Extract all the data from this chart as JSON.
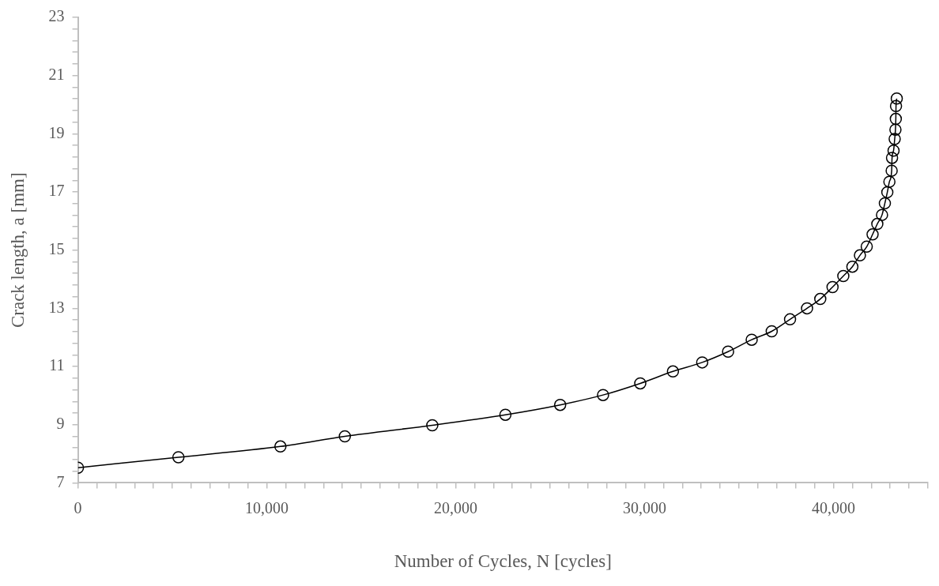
{
  "chart_data": {
    "type": "line",
    "xlabel": "Number of Cycles, N [cycles]",
    "ylabel": "Crack length, a [mm]",
    "x": [
      0,
      5320,
      10720,
      14130,
      18760,
      22630,
      25530,
      27800,
      29770,
      31500,
      33050,
      34420,
      35670,
      36730,
      37700,
      38600,
      39300,
      39950,
      40520,
      41000,
      41400,
      41760,
      42070,
      42320,
      42570,
      42720,
      42850,
      42960,
      43080,
      43100,
      43180,
      43240,
      43280,
      43300,
      43310,
      43350
    ],
    "series": [
      {
        "color": "#000000",
        "values": [
          7.52,
          7.88,
          8.25,
          8.6,
          8.98,
          9.34,
          9.68,
          10.02,
          10.42,
          10.83,
          11.14,
          11.51,
          11.92,
          12.21,
          12.62,
          13.0,
          13.32,
          13.73,
          14.11,
          14.43,
          14.82,
          15.12,
          15.54,
          15.9,
          16.21,
          16.61,
          16.99,
          17.35,
          17.73,
          18.17,
          18.42,
          18.82,
          19.14,
          19.51,
          19.95,
          20.21
        ]
      }
    ],
    "marker": "circle",
    "line_style": "solid",
    "grid": false,
    "legend": false,
    "xlim": [
      0,
      45000
    ],
    "xticks": [
      0,
      {
        "value": 1000,
        "label": null
      },
      {
        "value": 2000,
        "label": null
      },
      {
        "value": 3000,
        "label": null
      },
      {
        "value": 4000,
        "label": null
      },
      {
        "value": 5000,
        "label": null
      },
      {
        "value": 6000,
        "label": null
      },
      {
        "value": 7000,
        "label": null
      },
      {
        "value": 8000,
        "label": null
      },
      {
        "value": 9000,
        "label": null
      },
      {
        "value": 10000,
        "label": "10,000"
      },
      {
        "value": 11000,
        "label": null
      },
      {
        "value": 12000,
        "label": null
      },
      {
        "value": 13000,
        "label": null
      },
      {
        "value": 14000,
        "label": null
      },
      {
        "value": 15000,
        "label": null
      },
      {
        "value": 16000,
        "label": null
      },
      {
        "value": 17000,
        "label": null
      },
      {
        "value": 18000,
        "label": null
      },
      {
        "value": 19000,
        "label": null
      },
      {
        "value": 20000,
        "label": "20,000"
      },
      {
        "value": 21000,
        "label": null
      },
      {
        "value": 22000,
        "label": null
      },
      {
        "value": 23000,
        "label": null
      },
      {
        "value": 24000,
        "label": null
      },
      {
        "value": 25000,
        "label": null
      },
      {
        "value": 26000,
        "label": null
      },
      {
        "value": 27000,
        "label": null
      },
      {
        "value": 28000,
        "label": null
      },
      {
        "value": 29000,
        "label": null
      },
      {
        "value": 30000,
        "label": "30,000"
      },
      {
        "value": 31000,
        "label": null
      },
      {
        "value": 32000,
        "label": null
      },
      {
        "value": 33000,
        "label": null
      },
      {
        "value": 34000,
        "label": null
      },
      {
        "value": 35000,
        "label": null
      },
      {
        "value": 36000,
        "label": null
      },
      {
        "value": 37000,
        "label": null
      },
      {
        "value": 38000,
        "label": null
      },
      {
        "value": 39000,
        "label": null
      },
      {
        "value": 40000,
        "label": "40,000"
      },
      {
        "value": 41000,
        "label": null
      },
      {
        "value": 42000,
        "label": null
      },
      {
        "value": 43000,
        "label": null
      },
      {
        "value": 44000,
        "label": null
      },
      {
        "value": 45000,
        "label": null
      }
    ],
    "ylim": [
      7,
      23
    ],
    "yticks": [
      7,
      {
        "value": 7.4,
        "label": null
      },
      {
        "value": 7.8,
        "label": null
      },
      {
        "value": 8.2,
        "label": null
      },
      {
        "value": 8.6,
        "label": null
      },
      9,
      {
        "value": 9.4,
        "label": null
      },
      {
        "value": 9.8,
        "label": null
      },
      {
        "value": 10.2,
        "label": null
      },
      {
        "value": 10.6,
        "label": null
      },
      11,
      {
        "value": 11.4,
        "label": null
      },
      {
        "value": 11.8,
        "label": null
      },
      {
        "value": 12.2,
        "label": null
      },
      {
        "value": 12.6,
        "label": null
      },
      13,
      {
        "value": 13.4,
        "label": null
      },
      {
        "value": 13.8,
        "label": null
      },
      {
        "value": 14.2,
        "label": null
      },
      {
        "value": 14.6,
        "label": null
      },
      15,
      {
        "value": 15.4,
        "label": null
      },
      {
        "value": 15.8,
        "label": null
      },
      {
        "value": 16.2,
        "label": null
      },
      {
        "value": 16.6,
        "label": null
      },
      17,
      {
        "value": 17.4,
        "label": null
      },
      {
        "value": 17.8,
        "label": null
      },
      {
        "value": 18.2,
        "label": null
      },
      {
        "value": 18.6,
        "label": null
      },
      19,
      {
        "value": 19.4,
        "label": null
      },
      {
        "value": 19.8,
        "label": null
      },
      {
        "value": 20.2,
        "label": null
      },
      {
        "value": 20.6,
        "label": null
      },
      21,
      {
        "value": 21.4,
        "label": null
      },
      {
        "value": 21.8,
        "label": null
      },
      {
        "value": 22.2,
        "label": null
      },
      {
        "value": 22.6,
        "label": null
      },
      23
    ]
  }
}
